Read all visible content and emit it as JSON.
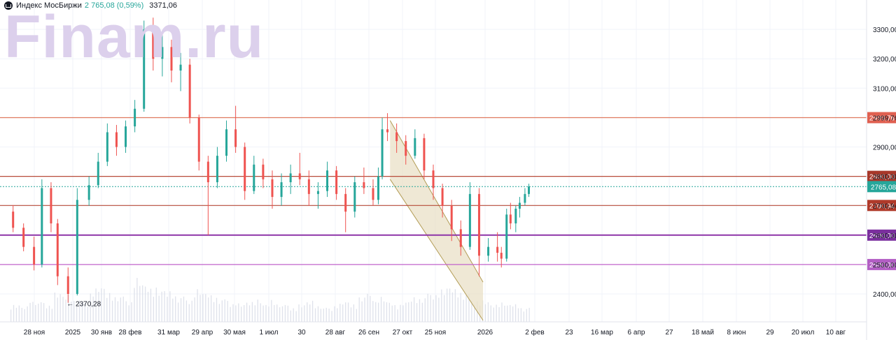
{
  "legend": {
    "title": "Индекс МосБиржи",
    "last": "2 765,08",
    "change": "(0,59%)",
    "volume": "3371,06"
  },
  "watermark": "Finam.ru",
  "colors": {
    "up": "#26a69a",
    "down": "#ef5350",
    "channel_fill": "#e9e0c7",
    "channel_line": "#b39c55"
  },
  "chart_data": {
    "type": "candlestick",
    "y_ticks": [
      {
        "value": 2400,
        "label": "2400,00"
      },
      {
        "value": 2500,
        "label": "2500,00"
      },
      {
        "value": 2600,
        "label": "2600,00"
      },
      {
        "value": 2700,
        "label": "2700,94"
      },
      {
        "value": 2800,
        "label": "2800,00"
      },
      {
        "value": 2900,
        "label": "2900,00"
      },
      {
        "value": 3000,
        "label": "2999,76"
      },
      {
        "value": 3100,
        "label": "3100,00"
      },
      {
        "value": 3200,
        "label": "3200,00"
      },
      {
        "value": 3300,
        "label": "3300,00"
      }
    ],
    "ylim": [
      2305,
      3400
    ],
    "x_ticks": [
      "28 ноя",
      "2025",
      "30 янв",
      "28 фев",
      "31 мар",
      "29 апр",
      "30 мая",
      "1 июл",
      "30",
      "28 авг",
      "26 сен",
      "27 окт",
      "25 ноя",
      "2026",
      "2 фев",
      "23",
      "16 мар",
      "6 апр",
      "27",
      "18 май",
      "8 июн",
      "29",
      "20 июл",
      "10 авг"
    ],
    "horizontal_levels": [
      {
        "label": "2999,76",
        "value": 2999.76,
        "color": "#e07a5f",
        "badge": "#e06050"
      },
      {
        "label": "2800,00",
        "value": 2800,
        "color": "#b84c3a",
        "badge": "#a8382a"
      },
      {
        "label": "2700,94",
        "value": 2700.94,
        "color": "#b84c3a",
        "badge": "#b03a2a"
      },
      {
        "label": "2600,00",
        "value": 2600,
        "color": "#8e35a8",
        "badge": "#7b2f9e"
      },
      {
        "label": "2500,00",
        "value": 2500,
        "color": "#c164cc",
        "badge": "#b35ec4"
      }
    ],
    "last_price": {
      "label": "2765,08",
      "value": 2765.08,
      "color": "#26a69a"
    },
    "annotation": {
      "text": "← 2370,28",
      "value": 2370.28,
      "date": "2024-12-18"
    },
    "channel": {
      "upper": [
        {
          "date": "2025-08-21",
          "value": 2990
        },
        {
          "date": "2025-10-31",
          "value": 2440
        }
      ],
      "lower": [
        {
          "date": "2025-08-21",
          "value": 2790
        },
        {
          "date": "2025-10-31",
          "value": 2310
        }
      ]
    },
    "candles": [
      {
        "date": "2024-11-06",
        "open": 2680,
        "high": 2702,
        "low": 2610,
        "close": 2625
      },
      {
        "date": "2024-11-14",
        "open": 2625,
        "high": 2640,
        "low": 2545,
        "close": 2560
      },
      {
        "date": "2024-11-22",
        "open": 2560,
        "high": 2595,
        "low": 2480,
        "close": 2500
      },
      {
        "date": "2024-11-28",
        "open": 2500,
        "high": 2790,
        "low": 2490,
        "close": 2760
      },
      {
        "date": "2024-12-05",
        "open": 2760,
        "high": 2780,
        "low": 2610,
        "close": 2640
      },
      {
        "date": "2024-12-10",
        "open": 2640,
        "high": 2655,
        "low": 2430,
        "close": 2460
      },
      {
        "date": "2024-12-18",
        "open": 2460,
        "high": 2490,
        "low": 2370,
        "close": 2400
      },
      {
        "date": "2024-12-25",
        "open": 2400,
        "high": 2760,
        "low": 2395,
        "close": 2720
      },
      {
        "date": "2025-01-03",
        "open": 2720,
        "high": 2800,
        "low": 2700,
        "close": 2770
      },
      {
        "date": "2025-01-10",
        "open": 2770,
        "high": 2880,
        "low": 2760,
        "close": 2850
      },
      {
        "date": "2025-01-17",
        "open": 2850,
        "high": 2980,
        "low": 2835,
        "close": 2950
      },
      {
        "date": "2025-01-24",
        "open": 2950,
        "high": 2975,
        "low": 2870,
        "close": 2900
      },
      {
        "date": "2025-01-31",
        "open": 2900,
        "high": 2990,
        "low": 2880,
        "close": 2970
      },
      {
        "date": "2025-02-07",
        "open": 2970,
        "high": 3060,
        "low": 2950,
        "close": 3030
      },
      {
        "date": "2025-02-14",
        "open": 3030,
        "high": 3330,
        "low": 3020,
        "close": 3300
      },
      {
        "date": "2025-02-21",
        "open": 3300,
        "high": 3340,
        "low": 3160,
        "close": 3200
      },
      {
        "date": "2025-02-28",
        "open": 3200,
        "high": 3280,
        "low": 3140,
        "close": 3240
      },
      {
        "date": "2025-03-07",
        "open": 3240,
        "high": 3265,
        "low": 3120,
        "close": 3160
      },
      {
        "date": "2025-03-14",
        "open": 3160,
        "high": 3220,
        "low": 3090,
        "close": 3180
      },
      {
        "date": "2025-03-21",
        "open": 3180,
        "high": 3200,
        "low": 2980,
        "close": 3000
      },
      {
        "date": "2025-03-28",
        "open": 3000,
        "high": 3010,
        "low": 2820,
        "close": 2850
      },
      {
        "date": "2025-04-04",
        "open": 2850,
        "high": 2870,
        "low": 2600,
        "close": 2780
      },
      {
        "date": "2025-04-11",
        "open": 2780,
        "high": 2900,
        "low": 2760,
        "close": 2870
      },
      {
        "date": "2025-04-18",
        "open": 2870,
        "high": 2990,
        "low": 2850,
        "close": 2960
      },
      {
        "date": "2025-04-25",
        "open": 2960,
        "high": 3040,
        "low": 2880,
        "close": 2900
      },
      {
        "date": "2025-05-02",
        "open": 2900,
        "high": 2915,
        "low": 2720,
        "close": 2750
      },
      {
        "date": "2025-05-09",
        "open": 2750,
        "high": 2870,
        "low": 2740,
        "close": 2840
      },
      {
        "date": "2025-05-16",
        "open": 2840,
        "high": 2860,
        "low": 2760,
        "close": 2790
      },
      {
        "date": "2025-05-23",
        "open": 2790,
        "high": 2820,
        "low": 2690,
        "close": 2730
      },
      {
        "date": "2025-05-30",
        "open": 2730,
        "high": 2810,
        "low": 2700,
        "close": 2780
      },
      {
        "date": "2025-06-06",
        "open": 2780,
        "high": 2840,
        "low": 2740,
        "close": 2810
      },
      {
        "date": "2025-06-13",
        "open": 2810,
        "high": 2880,
        "low": 2770,
        "close": 2790
      },
      {
        "date": "2025-06-20",
        "open": 2790,
        "high": 2820,
        "low": 2700,
        "close": 2740
      },
      {
        "date": "2025-06-27",
        "open": 2740,
        "high": 2780,
        "low": 2690,
        "close": 2750
      },
      {
        "date": "2025-07-04",
        "open": 2750,
        "high": 2850,
        "low": 2730,
        "close": 2820
      },
      {
        "date": "2025-07-11",
        "open": 2820,
        "high": 2835,
        "low": 2720,
        "close": 2740
      },
      {
        "date": "2025-07-18",
        "open": 2740,
        "high": 2760,
        "low": 2610,
        "close": 2680
      },
      {
        "date": "2025-07-25",
        "open": 2680,
        "high": 2800,
        "low": 2660,
        "close": 2780
      },
      {
        "date": "2025-08-01",
        "open": 2780,
        "high": 2830,
        "low": 2740,
        "close": 2760
      },
      {
        "date": "2025-08-08",
        "open": 2760,
        "high": 2790,
        "low": 2700,
        "close": 2720
      },
      {
        "date": "2025-08-12",
        "open": 2720,
        "high": 2830,
        "low": 2705,
        "close": 2800
      },
      {
        "date": "2025-08-15",
        "open": 2800,
        "high": 3000,
        "low": 2790,
        "close": 2960
      },
      {
        "date": "2025-08-19",
        "open": 2960,
        "high": 3015,
        "low": 2920,
        "close": 2950
      },
      {
        "date": "2025-08-26",
        "open": 2950,
        "high": 2980,
        "low": 2880,
        "close": 2920
      },
      {
        "date": "2025-09-02",
        "open": 2920,
        "high": 2940,
        "low": 2840,
        "close": 2870
      },
      {
        "date": "2025-09-09",
        "open": 2870,
        "high": 2960,
        "low": 2860,
        "close": 2930
      },
      {
        "date": "2025-09-16",
        "open": 2930,
        "high": 2945,
        "low": 2790,
        "close": 2820
      },
      {
        "date": "2025-09-23",
        "open": 2820,
        "high": 2840,
        "low": 2720,
        "close": 2760
      },
      {
        "date": "2025-09-30",
        "open": 2760,
        "high": 2775,
        "low": 2660,
        "close": 2700
      },
      {
        "date": "2025-10-07",
        "open": 2700,
        "high": 2720,
        "low": 2580,
        "close": 2620
      },
      {
        "date": "2025-10-14",
        "open": 2620,
        "high": 2650,
        "low": 2530,
        "close": 2560
      },
      {
        "date": "2025-10-21",
        "open": 2560,
        "high": 2780,
        "low": 2550,
        "close": 2740
      },
      {
        "date": "2025-10-28",
        "open": 2740,
        "high": 2760,
        "low": 2460,
        "close": 2530
      },
      {
        "date": "2025-11-04",
        "open": 2530,
        "high": 2590,
        "low": 2510,
        "close": 2560
      },
      {
        "date": "2025-11-11",
        "open": 2560,
        "high": 2610,
        "low": 2510,
        "close": 2540
      },
      {
        "date": "2025-11-14",
        "open": 2540,
        "high": 2560,
        "low": 2490,
        "close": 2520
      },
      {
        "date": "2025-11-18",
        "open": 2520,
        "high": 2690,
        "low": 2510,
        "close": 2670
      },
      {
        "date": "2025-11-21",
        "open": 2670,
        "high": 2710,
        "low": 2620,
        "close": 2640
      },
      {
        "date": "2025-11-25",
        "open": 2640,
        "high": 2700,
        "low": 2610,
        "close": 2690
      },
      {
        "date": "2025-11-28",
        "open": 2690,
        "high": 2730,
        "low": 2660,
        "close": 2710
      },
      {
        "date": "2025-12-02",
        "open": 2710,
        "high": 2760,
        "low": 2700,
        "close": 2740
      },
      {
        "date": "2025-12-05",
        "open": 2740,
        "high": 2775,
        "low": 2730,
        "close": 2765.08
      }
    ],
    "volume": {
      "series_dates": [
        "2024-11-04",
        "2025-12-05"
      ],
      "values_relative": [
        0.3,
        0.25,
        0.4,
        0.35,
        0.3,
        0.5,
        0.45,
        0.4,
        0.35,
        0.55,
        0.6,
        0.5,
        0.45,
        0.4,
        0.7,
        0.65,
        0.6,
        0.55,
        0.5,
        0.45,
        0.4,
        0.55,
        0.5,
        0.45,
        0.4,
        0.35,
        0.3,
        0.35,
        0.4,
        0.3,
        0.35,
        0.3,
        0.25,
        0.3,
        0.35,
        0.3,
        0.25,
        0.3,
        0.35,
        0.3,
        0.45,
        0.5,
        0.4,
        0.35,
        0.3,
        0.35,
        0.4,
        0.45,
        0.5,
        0.55,
        0.6,
        0.55,
        0.5,
        0.4,
        0.35,
        0.3,
        0.35,
        0.3,
        0.28,
        0.25
      ]
    }
  }
}
